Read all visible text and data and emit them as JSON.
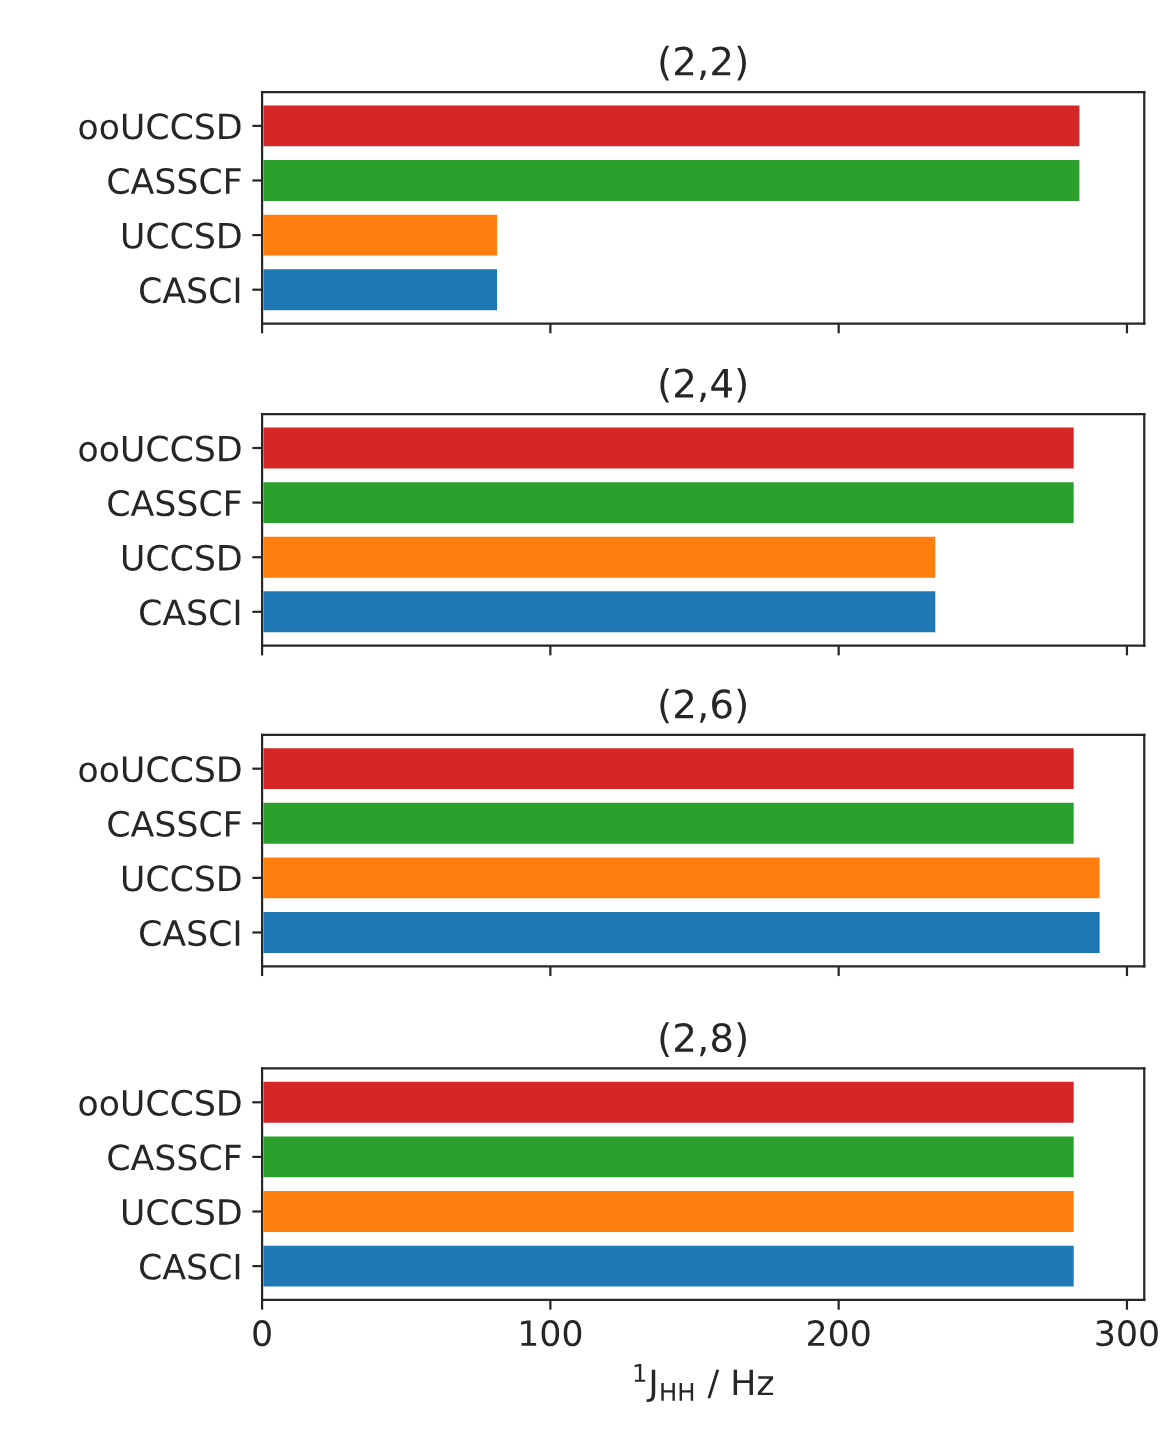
{
  "chart_data": [
    {
      "type": "bar",
      "orientation": "horizontal",
      "title": "(2,2)",
      "categories": [
        "ooUCCSD",
        "CASSCF",
        "UCCSD",
        "CASCI"
      ],
      "values": [
        284,
        284,
        82,
        82
      ],
      "colors": [
        "#d62728",
        "#2ca02c",
        "#ff7f0e",
        "#1f77b4"
      ],
      "xlim": [
        0,
        306
      ],
      "xticks": [
        0,
        100,
        200,
        300
      ],
      "tick_labels": "y"
    },
    {
      "type": "bar",
      "orientation": "horizontal",
      "title": "(2,4)",
      "categories": [
        "ooUCCSD",
        "CASSCF",
        "UCCSD",
        "CASCI"
      ],
      "values": [
        282,
        282,
        234,
        234
      ],
      "colors": [
        "#d62728",
        "#2ca02c",
        "#ff7f0e",
        "#1f77b4"
      ],
      "xlim": [
        0,
        306
      ],
      "xticks": [
        0,
        100,
        200,
        300
      ],
      "tick_labels": "y"
    },
    {
      "type": "bar",
      "orientation": "horizontal",
      "title": "(2,6)",
      "categories": [
        "ooUCCSD",
        "CASSCF",
        "UCCSD",
        "CASCI"
      ],
      "values": [
        282,
        282,
        291,
        291
      ],
      "colors": [
        "#d62728",
        "#2ca02c",
        "#ff7f0e",
        "#1f77b4"
      ],
      "xlim": [
        0,
        306
      ],
      "xticks": [
        0,
        100,
        200,
        300
      ],
      "tick_labels": "y"
    },
    {
      "type": "bar",
      "orientation": "horizontal",
      "title": "(2,8)",
      "xlabel": "$^{1}$J$_{HH}$ / Hz",
      "categories": [
        "ooUCCSD",
        "CASSCF",
        "UCCSD",
        "CASCI"
      ],
      "values": [
        282,
        282,
        282,
        282
      ],
      "colors": [
        "#d62728",
        "#2ca02c",
        "#ff7f0e",
        "#1f77b4"
      ],
      "xlim": [
        0,
        306
      ],
      "xticks": [
        0,
        100,
        200,
        300
      ]
    }
  ]
}
